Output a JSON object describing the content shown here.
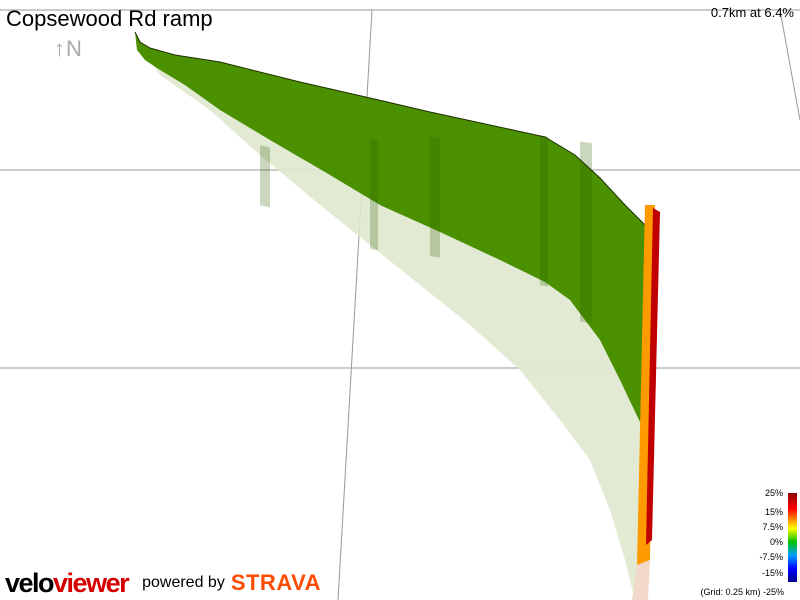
{
  "segment": {
    "title": "Copsewood Rd ramp",
    "stats": "0.7km at 6.4%",
    "north_indicator": "↑N"
  },
  "branding": {
    "logo_part1": "velo",
    "logo_part2": "viewer",
    "powered_by": "powered by",
    "strava": "STRAVA"
  },
  "legend": {
    "labels": [
      "25%",
      "15%",
      "7.5%",
      "0%",
      "-7.5%",
      "-15%"
    ],
    "grid_note": "(Grid: 0.25 km) -25%"
  },
  "colors": {
    "climb_dark": "#3f8a00",
    "climb_light": "#5a9e00",
    "shadow": "#dfe8cf",
    "ramp": "#ff9a00",
    "ramp_edge": "#c00000",
    "grid": "#999999"
  }
}
